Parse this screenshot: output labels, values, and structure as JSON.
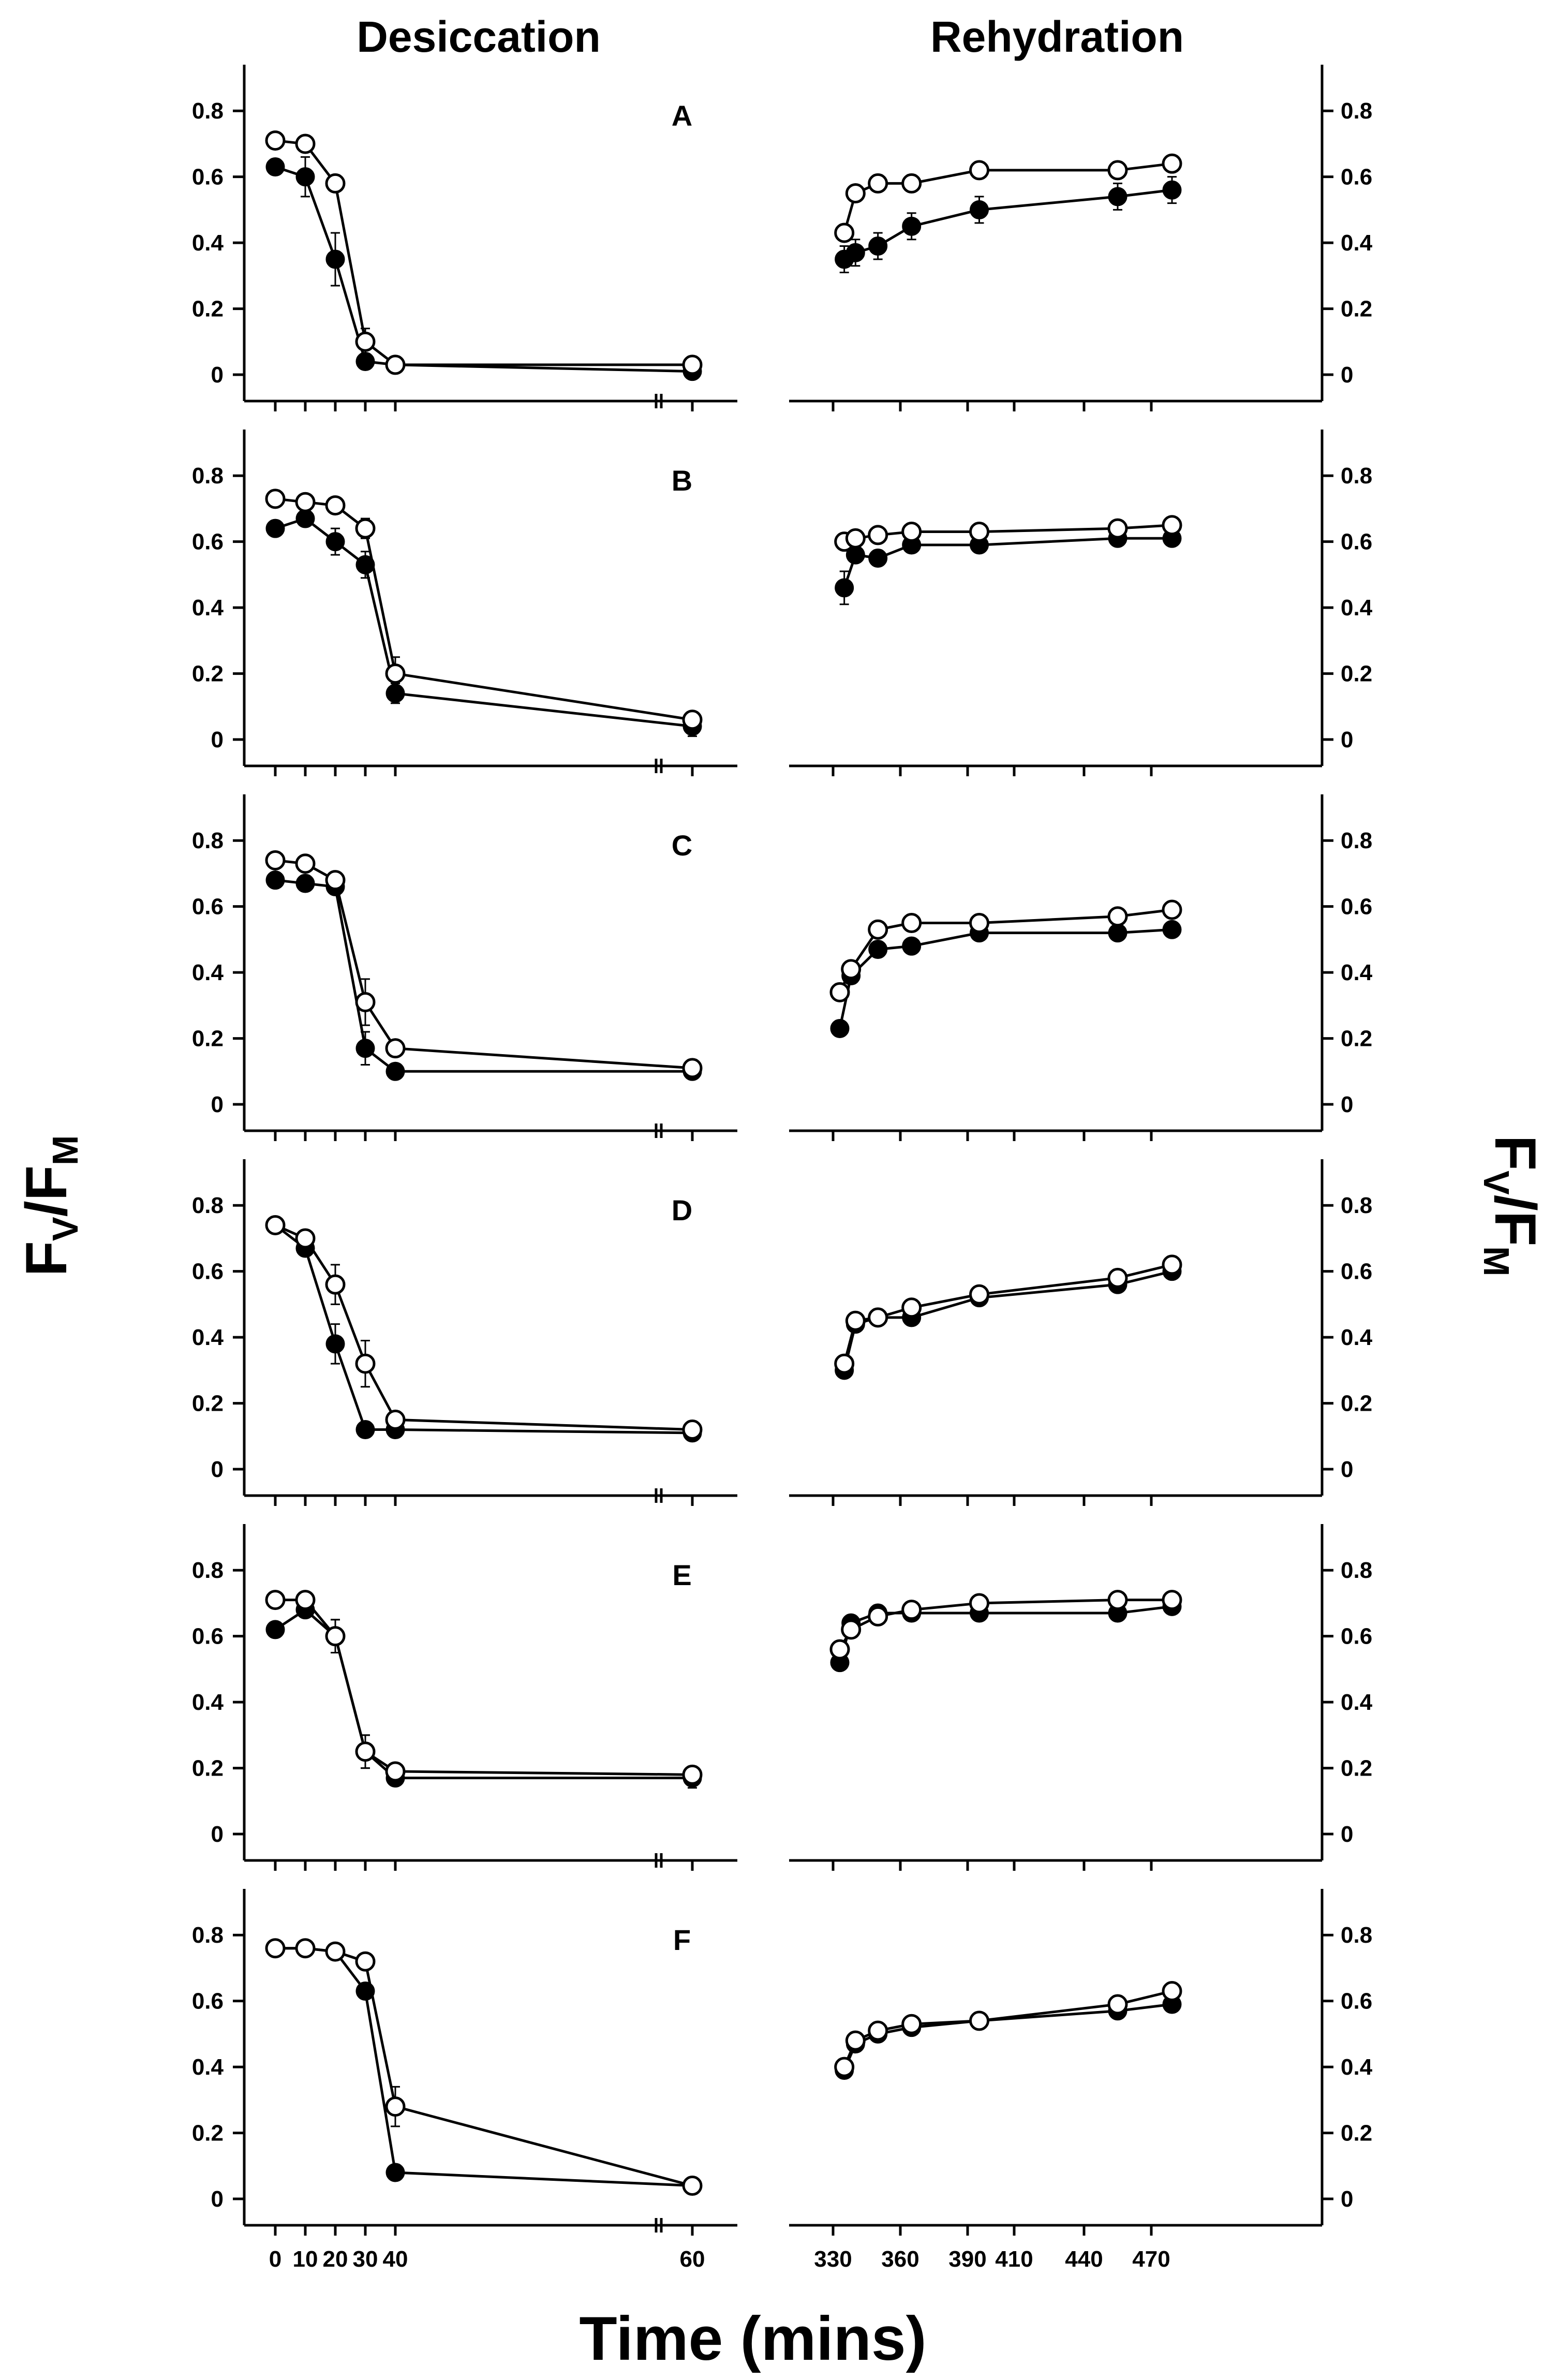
{
  "chart_data": {
    "type": "line",
    "column_titles": [
      "Desiccation",
      "Rehydration"
    ],
    "xlabel": "Time (mins)",
    "ylabel": {
      "main": "F",
      "sub_v": "V",
      "slash": "/",
      "main2": "F",
      "sub_m": "M"
    },
    "desiccation_xticks": [
      0,
      10,
      20,
      30,
      40,
      60
    ],
    "desiccation_xtick_labels": [
      "0",
      "10",
      "20",
      "30",
      "40",
      "60"
    ],
    "rehydration_xticks": [
      330,
      360,
      390,
      410,
      440,
      470
    ],
    "rehydration_xtick_labels": [
      "330",
      "360",
      "390",
      "410",
      "440",
      "470"
    ],
    "yticks": [
      0,
      0.2,
      0.4,
      0.6,
      0.8
    ],
    "ytick_labels": [
      "0",
      "0.2",
      "0.4",
      "0.6",
      "0.8"
    ],
    "ylim": [
      -0.08,
      0.94
    ],
    "series_names": [
      "open circles",
      "filled circles"
    ],
    "panels": [
      {
        "letter": "A",
        "desiccation": {
          "x": [
            0,
            10,
            20,
            30,
            40,
            60
          ],
          "open": [
            0.71,
            0.7,
            0.58,
            0.1,
            0.03,
            0.03
          ],
          "open_err": [
            0.01,
            0.02,
            0.01,
            0.04,
            0.01,
            0.01
          ],
          "filled": [
            0.63,
            0.6,
            0.35,
            0.04,
            0.03,
            0.01
          ],
          "filled_err": [
            0.02,
            0.06,
            0.08,
            0.01,
            0.01,
            0.01
          ]
        },
        "rehydration": {
          "x": [
            335,
            340,
            350,
            365,
            395,
            455,
            480
          ],
          "open": [
            0.43,
            0.55,
            0.58,
            0.58,
            0.62,
            0.62,
            0.64
          ],
          "open_err": [
            0.01,
            0.01,
            0.01,
            0.01,
            0.01,
            0.01,
            0.01
          ],
          "filled": [
            0.35,
            0.37,
            0.39,
            0.45,
            0.5,
            0.54,
            0.56
          ],
          "filled_err": [
            0.04,
            0.04,
            0.04,
            0.04,
            0.04,
            0.04,
            0.04
          ]
        }
      },
      {
        "letter": "B",
        "desiccation": {
          "x": [
            0,
            10,
            20,
            30,
            40,
            60
          ],
          "open": [
            0.73,
            0.72,
            0.71,
            0.64,
            0.2,
            0.06
          ],
          "open_err": [
            0.01,
            0.01,
            0.01,
            0.03,
            0.05,
            0.01
          ],
          "filled": [
            0.64,
            0.67,
            0.6,
            0.53,
            0.14,
            0.04
          ],
          "filled_err": [
            0.01,
            0.02,
            0.04,
            0.04,
            0.03,
            0.03
          ]
        },
        "rehydration": {
          "x": [
            335,
            340,
            350,
            365,
            395,
            455,
            480
          ],
          "open": [
            0.6,
            0.61,
            0.62,
            0.63,
            0.63,
            0.64,
            0.65
          ],
          "open_err": [
            0.01,
            0.01,
            0.01,
            0.01,
            0.01,
            0.01,
            0.01
          ],
          "filled": [
            0.46,
            0.56,
            0.55,
            0.59,
            0.59,
            0.61,
            0.61
          ],
          "filled_err": [
            0.05,
            0.02,
            0.02,
            0.01,
            0.01,
            0.01,
            0.01
          ]
        }
      },
      {
        "letter": "C",
        "desiccation": {
          "x": [
            0,
            10,
            20,
            30,
            40,
            60
          ],
          "open": [
            0.74,
            0.73,
            0.68,
            0.31,
            0.17,
            0.11
          ],
          "open_err": [
            0.01,
            0.01,
            0.01,
            0.07,
            0.01,
            0.01
          ],
          "filled": [
            0.68,
            0.67,
            0.66,
            0.17,
            0.1,
            0.1
          ],
          "filled_err": [
            0.01,
            0.01,
            0.01,
            0.05,
            0.01,
            0.01
          ]
        },
        "rehydration": {
          "x": [
            333,
            338,
            350,
            365,
            395,
            455,
            480
          ],
          "open": [
            0.34,
            0.41,
            0.53,
            0.55,
            0.55,
            0.57,
            0.59
          ],
          "open_err": [
            0.01,
            0.01,
            0.01,
            0.01,
            0.01,
            0.01,
            0.01
          ],
          "filled": [
            0.23,
            0.39,
            0.47,
            0.48,
            0.52,
            0.52,
            0.53
          ],
          "filled_err": [
            0.01,
            0.02,
            0.02,
            0.02,
            0.01,
            0.02,
            0.02
          ]
        }
      },
      {
        "letter": "D",
        "desiccation": {
          "x": [
            0,
            10,
            20,
            30,
            40,
            60
          ],
          "open": [
            0.74,
            0.7,
            0.56,
            0.32,
            0.15,
            0.12
          ],
          "open_err": [
            0.01,
            0.01,
            0.06,
            0.07,
            0.01,
            0.01
          ],
          "filled": [
            0.74,
            0.67,
            0.38,
            0.12,
            0.12,
            0.11
          ],
          "filled_err": [
            0.01,
            0.01,
            0.06,
            0.01,
            0.01,
            0.02
          ]
        },
        "rehydration": {
          "x": [
            335,
            340,
            350,
            365,
            395,
            455,
            480
          ],
          "open": [
            0.32,
            0.45,
            0.46,
            0.49,
            0.53,
            0.58,
            0.62
          ],
          "open_err": [
            0.01,
            0.01,
            0.01,
            0.01,
            0.01,
            0.01,
            0.01
          ],
          "filled": [
            0.3,
            0.44,
            0.46,
            0.46,
            0.52,
            0.56,
            0.6
          ],
          "filled_err": [
            0.01,
            0.01,
            0.01,
            0.01,
            0.01,
            0.01,
            0.01
          ]
        }
      },
      {
        "letter": "E",
        "desiccation": {
          "x": [
            0,
            10,
            20,
            30,
            40,
            60
          ],
          "open": [
            0.71,
            0.71,
            0.6,
            0.25,
            0.19,
            0.18
          ],
          "open_err": [
            0.01,
            0.01,
            0.05,
            0.05,
            0.01,
            0.02
          ],
          "filled": [
            0.62,
            0.68,
            0.6,
            0.25,
            0.17,
            0.17
          ],
          "filled_err": [
            0.01,
            0.01,
            0.05,
            0.05,
            0.01,
            0.03
          ]
        },
        "rehydration": {
          "x": [
            333,
            338,
            350,
            365,
            395,
            455,
            480
          ],
          "open": [
            0.56,
            0.62,
            0.66,
            0.68,
            0.7,
            0.71,
            0.71
          ],
          "open_err": [
            0.01,
            0.01,
            0.01,
            0.01,
            0.01,
            0.01,
            0.01
          ],
          "filled": [
            0.52,
            0.64,
            0.67,
            0.67,
            0.67,
            0.67,
            0.69
          ],
          "filled_err": [
            0.01,
            0.01,
            0.01,
            0.01,
            0.01,
            0.01,
            0.01
          ]
        }
      },
      {
        "letter": "F",
        "desiccation": {
          "x": [
            0,
            10,
            20,
            30,
            40,
            60
          ],
          "open": [
            0.76,
            0.76,
            0.75,
            0.72,
            0.28,
            0.04
          ],
          "open_err": [
            0.01,
            0.01,
            0.01,
            0.01,
            0.06,
            0.01
          ],
          "filled": [
            0.76,
            0.76,
            0.75,
            0.63,
            0.08,
            0.04
          ],
          "filled_err": [
            0.01,
            0.01,
            0.01,
            0.01,
            0.01,
            0.01
          ]
        },
        "rehydration": {
          "x": [
            335,
            340,
            350,
            365,
            395,
            455,
            480
          ],
          "open": [
            0.4,
            0.48,
            0.51,
            0.53,
            0.54,
            0.59,
            0.63
          ],
          "open_err": [
            0.01,
            0.01,
            0.01,
            0.01,
            0.01,
            0.01,
            0.01
          ],
          "filled": [
            0.39,
            0.47,
            0.5,
            0.52,
            0.54,
            0.57,
            0.59
          ],
          "filled_err": [
            0.01,
            0.01,
            0.01,
            0.01,
            0.01,
            0.01,
            0.01
          ]
        }
      }
    ]
  }
}
